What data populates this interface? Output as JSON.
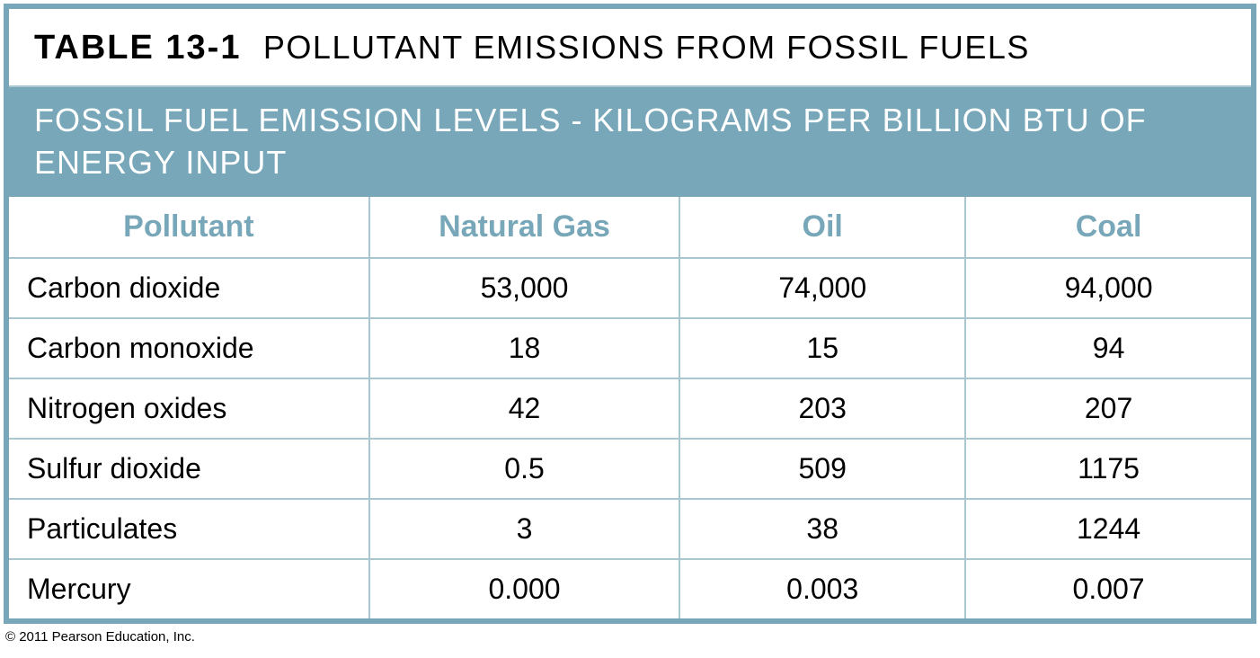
{
  "table": {
    "type": "table",
    "border_color": "#77a7b8",
    "grid_color": "#a9c6d1",
    "background_color": "#ffffff",
    "header_row_bg": "#77a7b8",
    "header_row_text_color": "#ffffff",
    "column_header_color": "#77a7b8",
    "body_text_color": "#000000",
    "title_number": "TABLE 13-1",
    "title_text": "POLLUTANT EMISSIONS FROM FOSSIL FUELS",
    "title_fontsize_pt": 28,
    "subtitle": "FOSSIL FUEL EMISSION LEVELS - KILOGRAMS PER BILLION BTU OF ENERGY INPUT",
    "subtitle_fontsize_pt": 27,
    "body_fontsize_pt": 24,
    "columns": [
      {
        "key": "pollutant",
        "label": "Pollutant",
        "align": "left",
        "width_pct": 29
      },
      {
        "key": "natural_gas",
        "label": "Natural Gas",
        "align": "center",
        "width_pct": 25
      },
      {
        "key": "oil",
        "label": "Oil",
        "align": "center",
        "width_pct": 23
      },
      {
        "key": "coal",
        "label": "Coal",
        "align": "center",
        "width_pct": 23
      }
    ],
    "rows": [
      {
        "pollutant": "Carbon dioxide",
        "natural_gas": "53,000",
        "oil": "74,000",
        "coal": "94,000"
      },
      {
        "pollutant": "Carbon monoxide",
        "natural_gas": "18",
        "oil": "15",
        "coal": "94"
      },
      {
        "pollutant": "Nitrogen oxides",
        "natural_gas": "42",
        "oil": "203",
        "coal": "207"
      },
      {
        "pollutant": "Sulfur dioxide",
        "natural_gas": "0.5",
        "oil": "509",
        "coal": "1175"
      },
      {
        "pollutant": "Particulates",
        "natural_gas": "3",
        "oil": "38",
        "coal": "1244"
      },
      {
        "pollutant": "Mercury",
        "natural_gas": "0.000",
        "oil": "0.003",
        "coal": "0.007"
      }
    ]
  },
  "copyright": "© 2011 Pearson Education, Inc."
}
